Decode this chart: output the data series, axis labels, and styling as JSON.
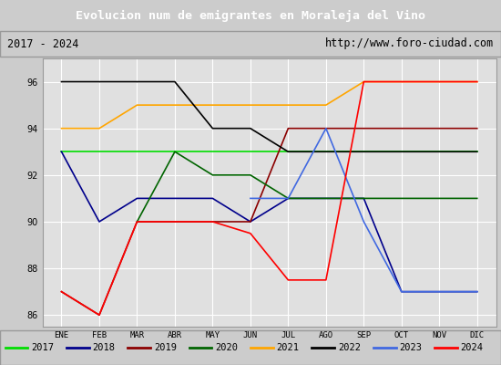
{
  "title": "Evolucion num de emigrantes en Moraleja del Vino",
  "subtitle_left": "2017 - 2024",
  "subtitle_right": "http://www.foro-ciudad.com",
  "months": [
    "ENE",
    "FEB",
    "MAR",
    "ABR",
    "MAY",
    "JUN",
    "JUL",
    "AGO",
    "SEP",
    "OCT",
    "NOV",
    "DIC"
  ],
  "month_indices": [
    1,
    2,
    3,
    4,
    5,
    6,
    7,
    8,
    9,
    10,
    11,
    12
  ],
  "ylim": [
    85.5,
    97
  ],
  "yticks": [
    86,
    88,
    90,
    92,
    94,
    96
  ],
  "series": {
    "2017": {
      "color": "#00dd00",
      "data": [
        93,
        93,
        93,
        93,
        93,
        93,
        93,
        93,
        93,
        93,
        93,
        93
      ]
    },
    "2018": {
      "color": "#00008b",
      "data": [
        93,
        90,
        91,
        91,
        91,
        90,
        91,
        91,
        91,
        87,
        87,
        87
      ]
    },
    "2019": {
      "color": "#8b0000",
      "data": [
        87,
        86,
        90,
        90,
        90,
        90,
        94,
        94,
        94,
        94,
        94,
        94
      ]
    },
    "2020": {
      "color": "#006400",
      "data": [
        null,
        null,
        90,
        93,
        92,
        92,
        91,
        91,
        91,
        91,
        91,
        91
      ]
    },
    "2021": {
      "color": "#ffa500",
      "data": [
        94,
        94,
        95,
        95,
        95,
        95,
        95,
        95,
        96,
        96,
        96,
        96
      ]
    },
    "2022": {
      "color": "#000000",
      "data": [
        96,
        96,
        96,
        96,
        94,
        94,
        93,
        93,
        93,
        93,
        93,
        93
      ]
    },
    "2023": {
      "color": "#4169e1",
      "data": [
        null,
        null,
        null,
        null,
        null,
        91,
        91,
        94,
        90,
        87,
        87,
        87
      ]
    },
    "2024": {
      "color": "#ff0000",
      "data": [
        87,
        86,
        90,
        90,
        90,
        89.5,
        87.5,
        87.5,
        96,
        96,
        96,
        96
      ]
    }
  },
  "background_color": "#cccccc",
  "plot_bg_color": "#e0e0e0",
  "title_bg_color": "#4a7fd4",
  "title_text_color": "#ffffff",
  "grid_color": "#ffffff",
  "subtitle_border_color": "#999999",
  "legend_order": [
    "2017",
    "2018",
    "2019",
    "2020",
    "2021",
    "2022",
    "2023",
    "2024"
  ]
}
